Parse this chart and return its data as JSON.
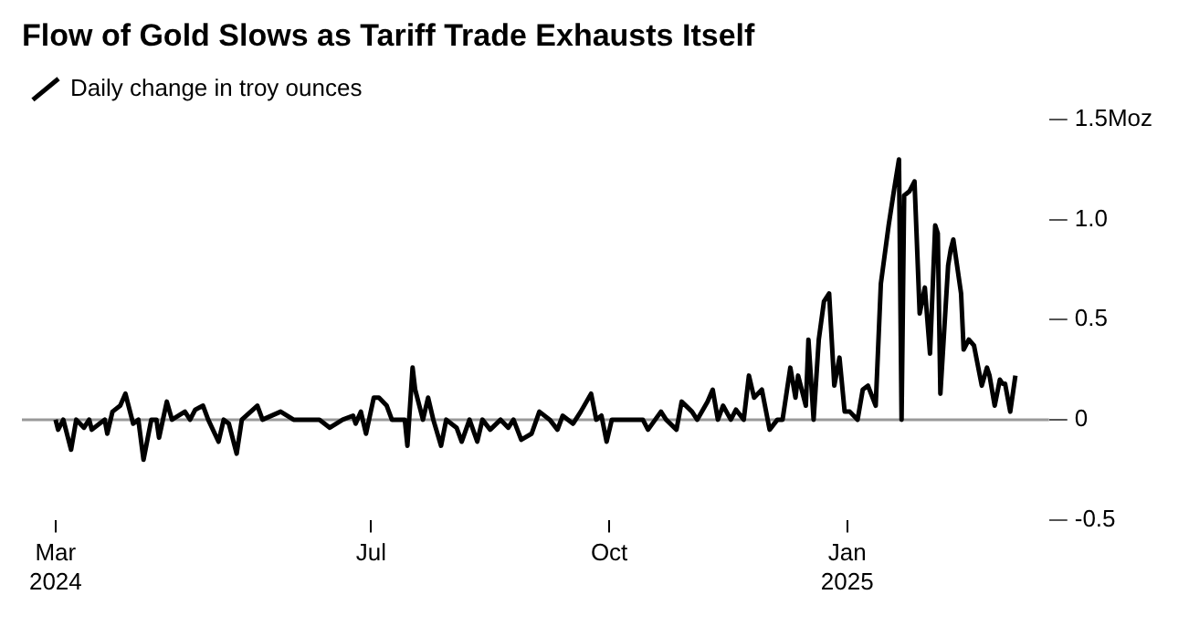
{
  "chart_data": {
    "type": "line",
    "title": "Flow of Gold Slows as Tariff Trade Exhausts Itself",
    "x": [
      "2024-03-01",
      "2024-03-02",
      "2024-03-04",
      "2024-03-07",
      "2024-03-09",
      "2024-03-12",
      "2024-03-14",
      "2024-03-15",
      "2024-03-18",
      "2024-03-20",
      "2024-03-21",
      "2024-03-23",
      "2024-03-26",
      "2024-03-28",
      "2024-03-31",
      "2024-04-02",
      "2024-04-04",
      "2024-04-07",
      "2024-04-09",
      "2024-04-10",
      "2024-04-13",
      "2024-04-15",
      "2024-04-20",
      "2024-04-22",
      "2024-04-24",
      "2024-04-27",
      "2024-04-29",
      "2024-05-03",
      "2024-05-05",
      "2024-05-07",
      "2024-05-10",
      "2024-05-12",
      "2024-05-18",
      "2024-05-20",
      "2024-05-27",
      "2024-06-01",
      "2024-06-11",
      "2024-06-15",
      "2024-06-20",
      "2024-06-24",
      "2024-06-25",
      "2024-06-27",
      "2024-06-29",
      "2024-07-02",
      "2024-07-04",
      "2024-07-07",
      "2024-07-09",
      "2024-07-14",
      "2024-07-15",
      "2024-07-17",
      "2024-07-18",
      "2024-07-21",
      "2024-07-23",
      "2024-07-25",
      "2024-07-28",
      "2024-07-30",
      "2024-08-03",
      "2024-08-05",
      "2024-08-08",
      "2024-08-11",
      "2024-08-13",
      "2024-08-16",
      "2024-08-20",
      "2024-08-23",
      "2024-08-25",
      "2024-08-28",
      "2024-09-01",
      "2024-09-04",
      "2024-09-08",
      "2024-09-11",
      "2024-09-13",
      "2024-09-17",
      "2024-09-20",
      "2024-09-24",
      "2024-09-26",
      "2024-09-28",
      "2024-09-30",
      "2024-10-02",
      "2024-10-14",
      "2024-10-16",
      "2024-10-21",
      "2024-10-23",
      "2024-10-27",
      "2024-10-29",
      "2024-11-02",
      "2024-11-04",
      "2024-11-08",
      "2024-11-10",
      "2024-11-12",
      "2024-11-14",
      "2024-11-17",
      "2024-11-19",
      "2024-11-22",
      "2024-11-24",
      "2024-11-26",
      "2024-11-29",
      "2024-12-02",
      "2024-12-05",
      "2024-12-07",
      "2024-12-10",
      "2024-12-12",
      "2024-12-13",
      "2024-12-16",
      "2024-12-17",
      "2024-12-19",
      "2024-12-21",
      "2024-12-23",
      "2024-12-25",
      "2024-12-27",
      "2024-12-29",
      "2024-12-31",
      "2025-01-02",
      "2025-01-05",
      "2025-01-07",
      "2025-01-09",
      "2025-01-12",
      "2025-01-14",
      "2025-01-17",
      "2025-01-19",
      "2025-01-21",
      "2025-01-22",
      "2025-01-23",
      "2025-01-25",
      "2025-01-27",
      "2025-01-29",
      "2025-01-31",
      "2025-02-02",
      "2025-02-04",
      "2025-02-05",
      "2025-02-06",
      "2025-02-09",
      "2025-02-10",
      "2025-02-11",
      "2025-02-14",
      "2025-02-15",
      "2025-02-17",
      "2025-02-19",
      "2025-02-22",
      "2025-02-24",
      "2025-02-25",
      "2025-02-27",
      "2025-03-01",
      "2025-03-02",
      "2025-03-03",
      "2025-03-05",
      "2025-03-07"
    ],
    "series": [
      {
        "name": "Daily change in troy ounces",
        "color": "#000000",
        "values": [
          0,
          -0.05,
          0,
          -0.15,
          0,
          -0.04,
          0,
          -0.05,
          -0.02,
          0,
          -0.07,
          0.04,
          0.07,
          0.13,
          -0.02,
          0,
          -0.2,
          0,
          0,
          -0.09,
          0.09,
          0,
          0.04,
          0,
          0.05,
          0.07,
          0,
          -0.11,
          0,
          -0.02,
          -0.17,
          0,
          0.07,
          0,
          0.04,
          0,
          0,
          -0.04,
          0,
          0.02,
          -0.02,
          0.04,
          -0.07,
          0.11,
          0.11,
          0.07,
          0,
          0,
          -0.13,
          0.26,
          0.15,
          0,
          0.11,
          0,
          -0.13,
          0,
          -0.04,
          -0.11,
          0,
          -0.11,
          0,
          -0.05,
          0,
          -0.04,
          0,
          -0.1,
          -0.07,
          0.04,
          0,
          -0.05,
          0.02,
          -0.02,
          0.04,
          0.13,
          0,
          0.02,
          -0.11,
          0,
          0,
          -0.05,
          0.04,
          0,
          -0.05,
          0.09,
          0.04,
          0,
          0.09,
          0.15,
          0,
          0.07,
          0,
          0.05,
          0,
          0.22,
          0.11,
          0.15,
          -0.05,
          0,
          0,
          0.26,
          0.11,
          0.22,
          0.07,
          0.4,
          0,
          0.4,
          0.59,
          0.63,
          0.17,
          0.31,
          0.04,
          0.04,
          0,
          0.15,
          0.17,
          0.07,
          0.68,
          0.97,
          1.14,
          1.3,
          0,
          1.12,
          1.14,
          1.19,
          0.53,
          0.66,
          0.33,
          0.97,
          0.93,
          0.13,
          0.77,
          0.85,
          0.9,
          0.63,
          0.35,
          0.4,
          0.37,
          0.17,
          0.26,
          0.22,
          0.07,
          0.2,
          0.18,
          0.18,
          0.04,
          0.22
        ]
      }
    ],
    "xlim": [
      "2024-02-17",
      "2025-03-20"
    ],
    "xticks": [
      {
        "value": "2024-03-01",
        "label": "Mar\n2024"
      },
      {
        "value": "2024-07-01",
        "label": "Jul"
      },
      {
        "value": "2024-10-01",
        "label": "Oct"
      },
      {
        "value": "2025-01-01",
        "label": "Jan\n2025"
      }
    ],
    "ylim": [
      -0.5,
      1.5
    ],
    "yticks": [
      -0.5,
      0,
      0.5,
      {
        "value": 1,
        "label": "1.0"
      },
      {
        "value": 1.5,
        "label": "1.5Moz"
      }
    ],
    "ref_lines": [
      {
        "axis": "y",
        "value": 0,
        "color": "#999999"
      }
    ],
    "legend": "top left",
    "marker": "none",
    "line_style": "solid"
  }
}
